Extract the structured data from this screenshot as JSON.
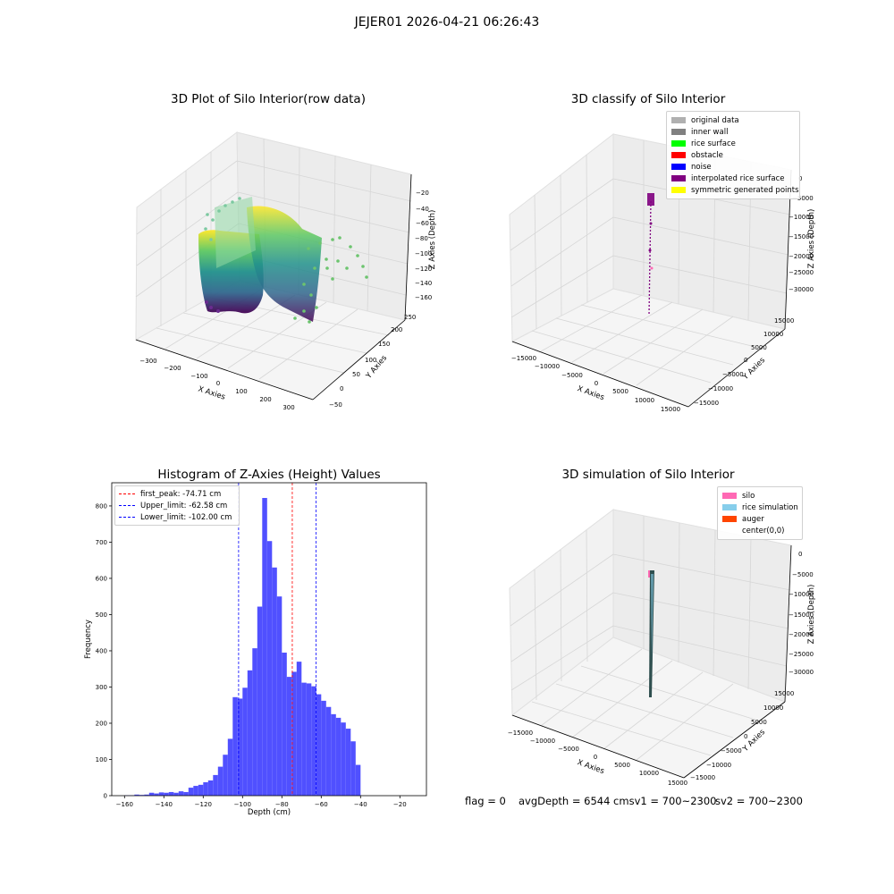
{
  "suptitle": "JEJER01 2026-04-21 06:26:43",
  "panels": {
    "raw": {
      "title": "3D Plot of Silo Interior(row data)",
      "xlabel": "X Axies",
      "ylabel": "Y Axies",
      "zlabel": "Z Axies (Depth)",
      "xticks": [
        "−300",
        "−200",
        "−100",
        "0",
        "100",
        "200",
        "300"
      ],
      "yticks": [
        "−50",
        "0",
        "50",
        "100",
        "150",
        "200",
        "250"
      ],
      "zticks": [
        "−20",
        "−40",
        "−60",
        "−80",
        "−100",
        "−120",
        "−140",
        "−160"
      ]
    },
    "classify": {
      "title": "3D classify of Silo Interior",
      "xlabel": "X Axies",
      "ylabel": "Y Axies",
      "zlabel": "Z Axies (Depth)",
      "xticks": [
        "−15000",
        "−10000",
        "−5000",
        "0",
        "5000",
        "10000",
        "15000"
      ],
      "yticks": [
        "−15000",
        "−10000",
        "−5000",
        "0",
        "5000",
        "10000",
        "15000"
      ],
      "zticks": [
        "0",
        "−5000",
        "−10000",
        "−15000",
        "−20000",
        "−25000",
        "−30000"
      ],
      "legend": [
        {
          "label": "original data",
          "color": "#b0b0b0"
        },
        {
          "label": "inner wall",
          "color": "#808080"
        },
        {
          "label": "rice surface",
          "color": "#00ff00"
        },
        {
          "label": "obstacle",
          "color": "#ff0000"
        },
        {
          "label": "noise",
          "color": "#0000ff"
        },
        {
          "label": "interpolated rice surface",
          "color": "#800080"
        },
        {
          "label": "symmetric generated points",
          "color": "#ffff00"
        }
      ]
    },
    "simulation": {
      "title": "3D simulation of Silo Interior",
      "xlabel": "X Axies",
      "ylabel": "Y Axies",
      "zlabel": "Z Axies (Depth)",
      "xticks": [
        "−15000",
        "−10000",
        "−5000",
        "0",
        "5000",
        "10000",
        "15000"
      ],
      "yticks": [
        "−15000",
        "−10000",
        "−5000",
        "0",
        "5000",
        "10000",
        "15000"
      ],
      "zticks": [
        "0",
        "−5000",
        "−10000",
        "−15000",
        "−20000",
        "−25000",
        "−30000"
      ],
      "legend": [
        {
          "label": "silo",
          "color": "#ff69b4"
        },
        {
          "label": "rice simulation",
          "color": "#87ceeb"
        },
        {
          "label": "auger",
          "color": "#ff4500"
        },
        {
          "label": "center(0,0)",
          "color": ""
        }
      ]
    }
  },
  "footer": {
    "flag": "flag = 0",
    "avg": "avgDepth = 6544 cmsv1 = 700~2300",
    "sv2": "sv2 = 700~2300"
  },
  "chart_data": [
    {
      "type": "bar",
      "title": "Histogram of Z-Axies (Height) Values",
      "xlabel": "Depth (cm)",
      "ylabel": "Frequency",
      "bar_color": "#5050ff",
      "bin_start": -160,
      "bin_width": 2.5,
      "values": [
        1,
        1,
        3,
        2,
        3,
        8,
        6,
        9,
        8,
        10,
        8,
        12,
        10,
        22,
        27,
        30,
        37,
        42,
        57,
        80,
        113,
        157,
        272,
        268,
        298,
        346,
        407,
        522,
        822,
        703,
        630,
        550,
        395,
        328,
        342,
        370,
        312,
        310,
        302,
        280,
        262,
        245,
        225,
        215,
        202,
        185,
        150,
        85
      ],
      "xlim": [
        -166.5,
        -6.5
      ],
      "ylim": [
        0,
        864
      ],
      "xticks": [
        -160,
        -140,
        -120,
        -100,
        -80,
        -60,
        -40,
        -20
      ],
      "xtick_labels": [
        "−160",
        "−140",
        "−120",
        "−100",
        "−80",
        "−60",
        "−40",
        "−20"
      ],
      "yticks": [
        0,
        100,
        200,
        300,
        400,
        500,
        600,
        700,
        800
      ],
      "ytick_labels": [
        "0",
        "100",
        "200",
        "300",
        "400",
        "500",
        "600",
        "700",
        "800"
      ],
      "vlines": [
        {
          "label": "first_peak: -74.71 cm",
          "x": -74.71,
          "color": "#ff0000"
        },
        {
          "label": "Upper_limit: -62.58 cm",
          "x": -62.58,
          "color": "#0000ff"
        },
        {
          "label": "Lower_limit: -102.00 cm",
          "x": -102.0,
          "color": "#0000ff"
        }
      ],
      "legend_position": "upper left"
    }
  ]
}
